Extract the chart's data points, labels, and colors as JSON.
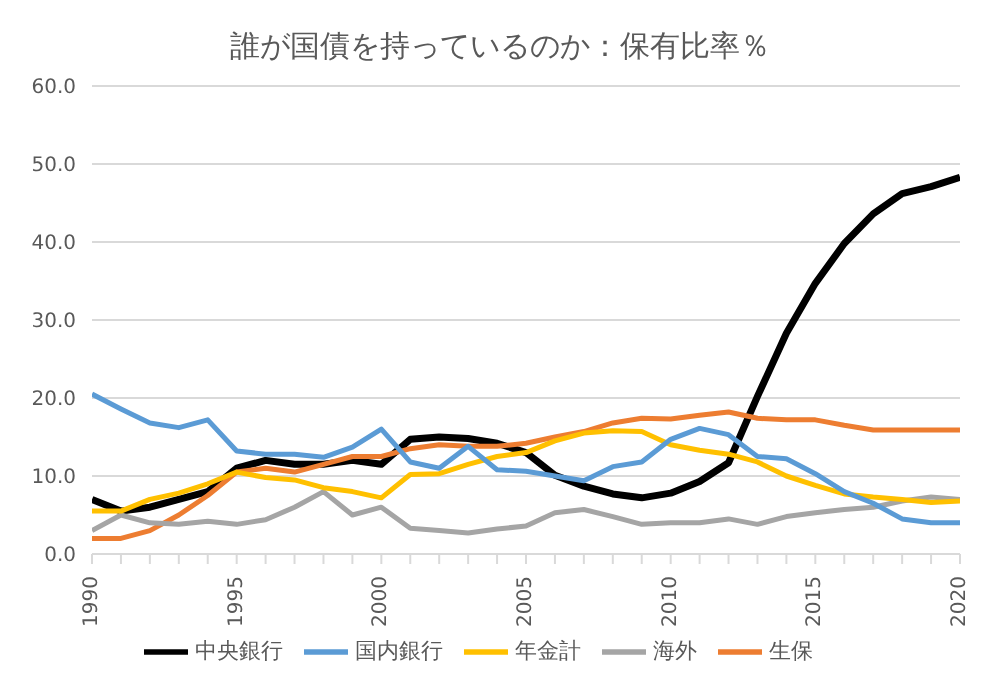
{
  "chart_data": {
    "type": "line",
    "title": "誰が国債を持っているのか：保有比率％",
    "x": [
      1990,
      1991,
      1992,
      1993,
      1994,
      1995,
      1996,
      1997,
      1998,
      1999,
      2000,
      2001,
      2002,
      2003,
      2004,
      2005,
      2006,
      2007,
      2008,
      2009,
      2010,
      2011,
      2012,
      2013,
      2014,
      2015,
      2016,
      2017,
      2018,
      2019,
      2020
    ],
    "series": [
      {
        "name": "中央銀行",
        "color": "#000000",
        "values": [
          7.0,
          5.5,
          6.0,
          7.0,
          8.0,
          11.0,
          12.0,
          11.5,
          11.5,
          12.0,
          11.5,
          14.7,
          15.0,
          14.8,
          14.2,
          13.0,
          10.1,
          8.7,
          7.7,
          7.2,
          7.8,
          9.3,
          11.7,
          20.2,
          28.3,
          34.7,
          39.8,
          43.6,
          46.2,
          47.1,
          48.3
        ]
      },
      {
        "name": "生保",
        "color": "#ed7d31",
        "values": [
          2.0,
          2.0,
          3.0,
          5.0,
          7.5,
          10.5,
          11.0,
          10.5,
          11.5,
          12.5,
          12.5,
          13.5,
          14.0,
          13.8,
          13.8,
          14.2,
          15.0,
          15.7,
          16.8,
          17.4,
          17.3,
          17.8,
          18.2,
          17.4,
          17.2,
          17.2,
          16.5,
          15.9,
          15.9,
          15.9,
          15.9
        ]
      },
      {
        "name": "海外",
        "color": "#a5a5a5",
        "values": [
          3.0,
          5.0,
          4.0,
          3.8,
          4.2,
          3.8,
          4.4,
          6.0,
          8.0,
          5.0,
          6.0,
          3.3,
          3.0,
          2.7,
          3.2,
          3.6,
          5.3,
          5.7,
          4.8,
          3.8,
          4.0,
          4.0,
          4.5,
          3.8,
          4.8,
          5.3,
          5.7,
          6.0,
          6.8,
          7.3,
          7.0
        ]
      },
      {
        "name": "年金計",
        "color": "#ffc000",
        "values": [
          5.5,
          5.5,
          7.0,
          7.8,
          9.0,
          10.5,
          9.8,
          9.5,
          8.5,
          8.0,
          7.2,
          10.2,
          10.3,
          11.5,
          12.5,
          13.0,
          14.5,
          15.5,
          15.8,
          15.7,
          14.0,
          13.3,
          12.8,
          11.8,
          10.0,
          8.8,
          7.7,
          7.3,
          7.0,
          6.6,
          6.8
        ]
      },
      {
        "name": "国内銀行",
        "color": "#5b9bd5",
        "values": [
          20.5,
          18.6,
          16.8,
          16.2,
          17.2,
          13.2,
          12.8,
          12.8,
          12.4,
          13.7,
          16.0,
          11.8,
          11.0,
          13.8,
          10.8,
          10.6,
          10.0,
          9.4,
          11.2,
          11.8,
          14.7,
          16.1,
          15.3,
          12.5,
          12.2,
          10.3,
          8.0,
          6.5,
          4.5,
          4.0,
          4.0
        ]
      }
    ],
    "xlim": [
      1990,
      2020
    ],
    "xticks": [
      1990,
      {
        "value": 1991,
        "label": null
      },
      {
        "value": 1992,
        "label": null
      },
      {
        "value": 1993,
        "label": null
      },
      {
        "value": 1994,
        "label": null
      },
      1995,
      {
        "value": 1996,
        "label": null
      },
      {
        "value": 1997,
        "label": null
      },
      {
        "value": 1998,
        "label": null
      },
      {
        "value": 1999,
        "label": null
      },
      2000,
      {
        "value": 2001,
        "label": null
      },
      {
        "value": 2002,
        "label": null
      },
      {
        "value": 2003,
        "label": null
      },
      {
        "value": 2004,
        "label": null
      },
      2005,
      {
        "value": 2006,
        "label": null
      },
      {
        "value": 2007,
        "label": null
      },
      {
        "value": 2008,
        "label": null
      },
      {
        "value": 2009,
        "label": null
      },
      2010,
      {
        "value": 2011,
        "label": null
      },
      {
        "value": 2012,
        "label": null
      },
      {
        "value": 2013,
        "label": null
      },
      {
        "value": 2014,
        "label": null
      },
      2015,
      {
        "value": 2016,
        "label": null
      },
      {
        "value": 2017,
        "label": null
      },
      {
        "value": 2018,
        "label": null
      },
      {
        "value": 2019,
        "label": null
      },
      2020
    ],
    "ylim": [
      0,
      60
    ],
    "yticks": [
      {
        "value": 0,
        "label": "0.0"
      },
      {
        "value": 10,
        "label": "10.0"
      },
      {
        "value": 20,
        "label": "20.0"
      },
      {
        "value": 30,
        "label": "30.0"
      },
      {
        "value": 40,
        "label": "40.0"
      },
      {
        "value": 50,
        "label": "50.0"
      },
      {
        "value": 60,
        "label": "60.0"
      }
    ],
    "grid": "y",
    "legend": "bottom",
    "marker": "none",
    "line_style": "solid"
  }
}
